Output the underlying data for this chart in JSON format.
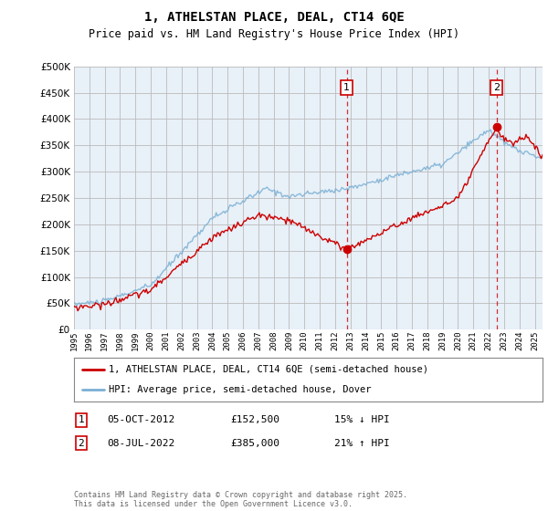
{
  "title": "1, ATHELSTAN PLACE, DEAL, CT14 6QE",
  "subtitle": "Price paid vs. HM Land Registry's House Price Index (HPI)",
  "ylim": [
    0,
    500000
  ],
  "xlim_start": 1995.0,
  "xlim_end": 2025.5,
  "sale1_x": 2012.75,
  "sale1_y": 152500,
  "sale2_x": 2022.5,
  "sale2_y": 385000,
  "sale1_label": "05-OCT-2012",
  "sale1_price": "£152,500",
  "sale1_hpi": "15% ↓ HPI",
  "sale2_label": "08-JUL-2022",
  "sale2_price": "£385,000",
  "sale2_hpi": "21% ↑ HPI",
  "legend_line1": "1, ATHELSTAN PLACE, DEAL, CT14 6QE (semi-detached house)",
  "legend_line2": "HPI: Average price, semi-detached house, Dover",
  "footer": "Contains HM Land Registry data © Crown copyright and database right 2025.\nThis data is licensed under the Open Government Licence v3.0.",
  "line_color_red": "#cc0000",
  "line_color_blue": "#7ab0d4",
  "bg_color_light": "#e8f0f8",
  "bg_color_lighter": "#ddeeff",
  "grid_color": "#cccccc",
  "annotation_box_color": "#cc0000"
}
